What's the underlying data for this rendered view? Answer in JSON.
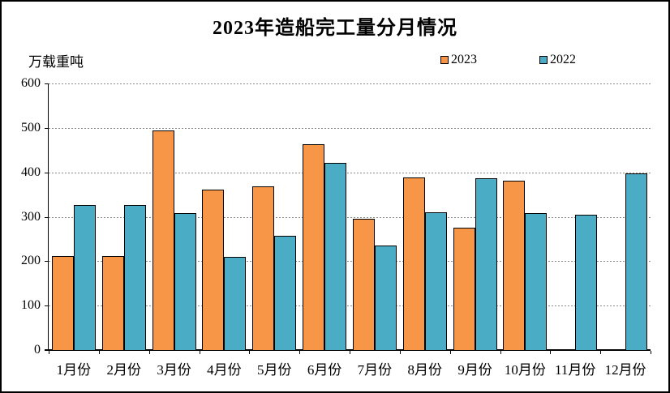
{
  "chart_data": {
    "type": "bar",
    "title": "2023年造船完工量分月情况",
    "unit_label": "万载重吨",
    "categories": [
      "1月份",
      "2月份",
      "3月份",
      "4月份",
      "5月份",
      "6月份",
      "7月份",
      "8月份",
      "9月份",
      "10月份",
      "11月份",
      "12月份"
    ],
    "series": [
      {
        "name": "2023",
        "color": "#F79646",
        "values": [
          211,
          212,
          494,
          362,
          368,
          464,
          296,
          388,
          276,
          381,
          null,
          null
        ]
      },
      {
        "name": "2022",
        "color": "#4BACC6",
        "values": [
          326,
          327,
          308,
          210,
          257,
          421,
          235,
          310,
          386,
          308,
          304,
          397
        ]
      }
    ],
    "ylabel": "",
    "xlabel": "",
    "ylim": [
      0,
      600
    ],
    "ytick_step": 100,
    "yticks": [
      "0",
      "100",
      "200",
      "300",
      "400",
      "500",
      "600"
    ],
    "grid": "horizontal-dashed",
    "legend_position": "top-center-right",
    "axis_color": "#000000",
    "gridline_color": "#8a8a8a",
    "background": "#ffffff"
  }
}
